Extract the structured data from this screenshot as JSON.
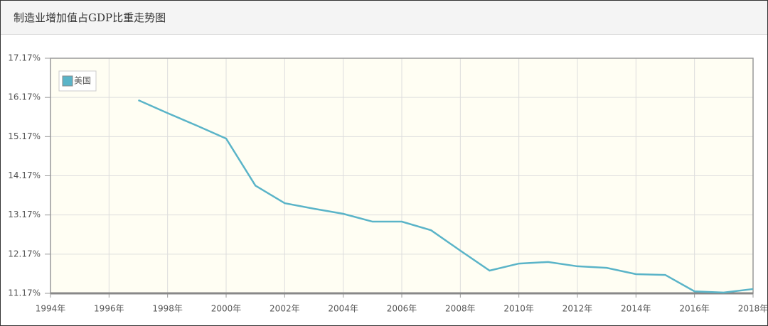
{
  "chart_data": {
    "type": "line",
    "title": "制造业增加值占GDP比重走势图",
    "x": [
      1997,
      1998,
      1999,
      2000,
      2001,
      2002,
      2003,
      2004,
      2005,
      2006,
      2007,
      2008,
      2009,
      2010,
      2011,
      2012,
      2013,
      2014,
      2015,
      2016,
      2017,
      2018
    ],
    "series": [
      {
        "name": "美国",
        "color": "#5ab4c8",
        "values": [
          16.1,
          15.77,
          15.45,
          15.12,
          13.92,
          13.47,
          13.33,
          13.2,
          13.0,
          13.0,
          12.78,
          12.26,
          11.75,
          11.93,
          11.97,
          11.86,
          11.82,
          11.66,
          11.64,
          11.22,
          11.19,
          11.28
        ]
      }
    ],
    "xlim": [
      1994,
      2018
    ],
    "xticks": [
      {
        "value": 1994,
        "label": "1994年"
      },
      {
        "value": 1996,
        "label": "1996年"
      },
      {
        "value": 1998,
        "label": "1998年"
      },
      {
        "value": 2000,
        "label": "2000年"
      },
      {
        "value": 2002,
        "label": "2002年"
      },
      {
        "value": 2004,
        "label": "2004年"
      },
      {
        "value": 2006,
        "label": "2006年"
      },
      {
        "value": 2008,
        "label": "2008年"
      },
      {
        "value": 2010,
        "label": "2010年"
      },
      {
        "value": 2012,
        "label": "2012年"
      },
      {
        "value": 2014,
        "label": "2014年"
      },
      {
        "value": 2016,
        "label": "2016年"
      },
      {
        "value": 2018,
        "label": "2018年"
      }
    ],
    "ylim": [
      11.17,
      17.17
    ],
    "yticks": [
      {
        "value": 11.17,
        "label": "11.17%"
      },
      {
        "value": 12.17,
        "label": "12.17%"
      },
      {
        "value": 13.17,
        "label": "13.17%"
      },
      {
        "value": 14.17,
        "label": "14.17%"
      },
      {
        "value": 15.17,
        "label": "15.17%"
      },
      {
        "value": 16.17,
        "label": "16.17%"
      },
      {
        "value": 17.17,
        "label": "17.17%"
      }
    ],
    "grid": true,
    "legend": "top-left"
  }
}
